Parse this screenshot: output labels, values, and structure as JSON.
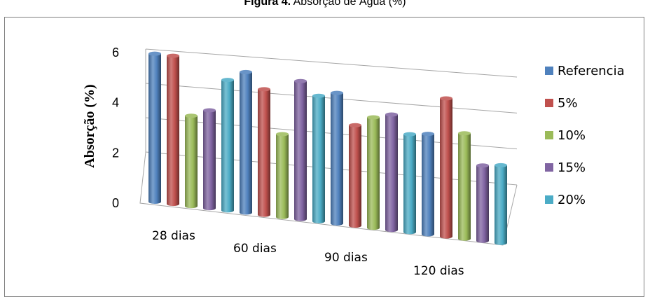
{
  "figure": {
    "title_bold": "Figura 4.",
    "title_rest": " Absorção de Água (%)"
  },
  "chart_data": {
    "type": "bar",
    "title": "Figura 4. Absorção de Água (%)",
    "xlabel": "",
    "ylabel": "Absorção (%)",
    "ylim": [
      0,
      6
    ],
    "yticks": [
      "0",
      "2",
      "4",
      "6"
    ],
    "categories": [
      "28 dias",
      "60 dias",
      "90 dias",
      "120 dias"
    ],
    "series": [
      {
        "name": "Referencia",
        "values": [
          5.9,
          5.6,
          5.2,
          4.0
        ],
        "color": "#4f81bd"
      },
      {
        "name": "5%",
        "values": [
          5.9,
          5.0,
          4.0,
          5.5
        ],
        "color": "#c0504d"
      },
      {
        "name": "10%",
        "values": [
          3.6,
          3.3,
          4.4,
          4.2
        ],
        "color": "#9bbb59"
      },
      {
        "name": "15%",
        "values": [
          3.9,
          5.5,
          4.6,
          3.0
        ],
        "color": "#8064a2"
      },
      {
        "name": "20%",
        "values": [
          5.2,
          5.0,
          3.9,
          3.1
        ],
        "color": "#4bacc6"
      }
    ],
    "legend_position": "right",
    "grid": true
  }
}
